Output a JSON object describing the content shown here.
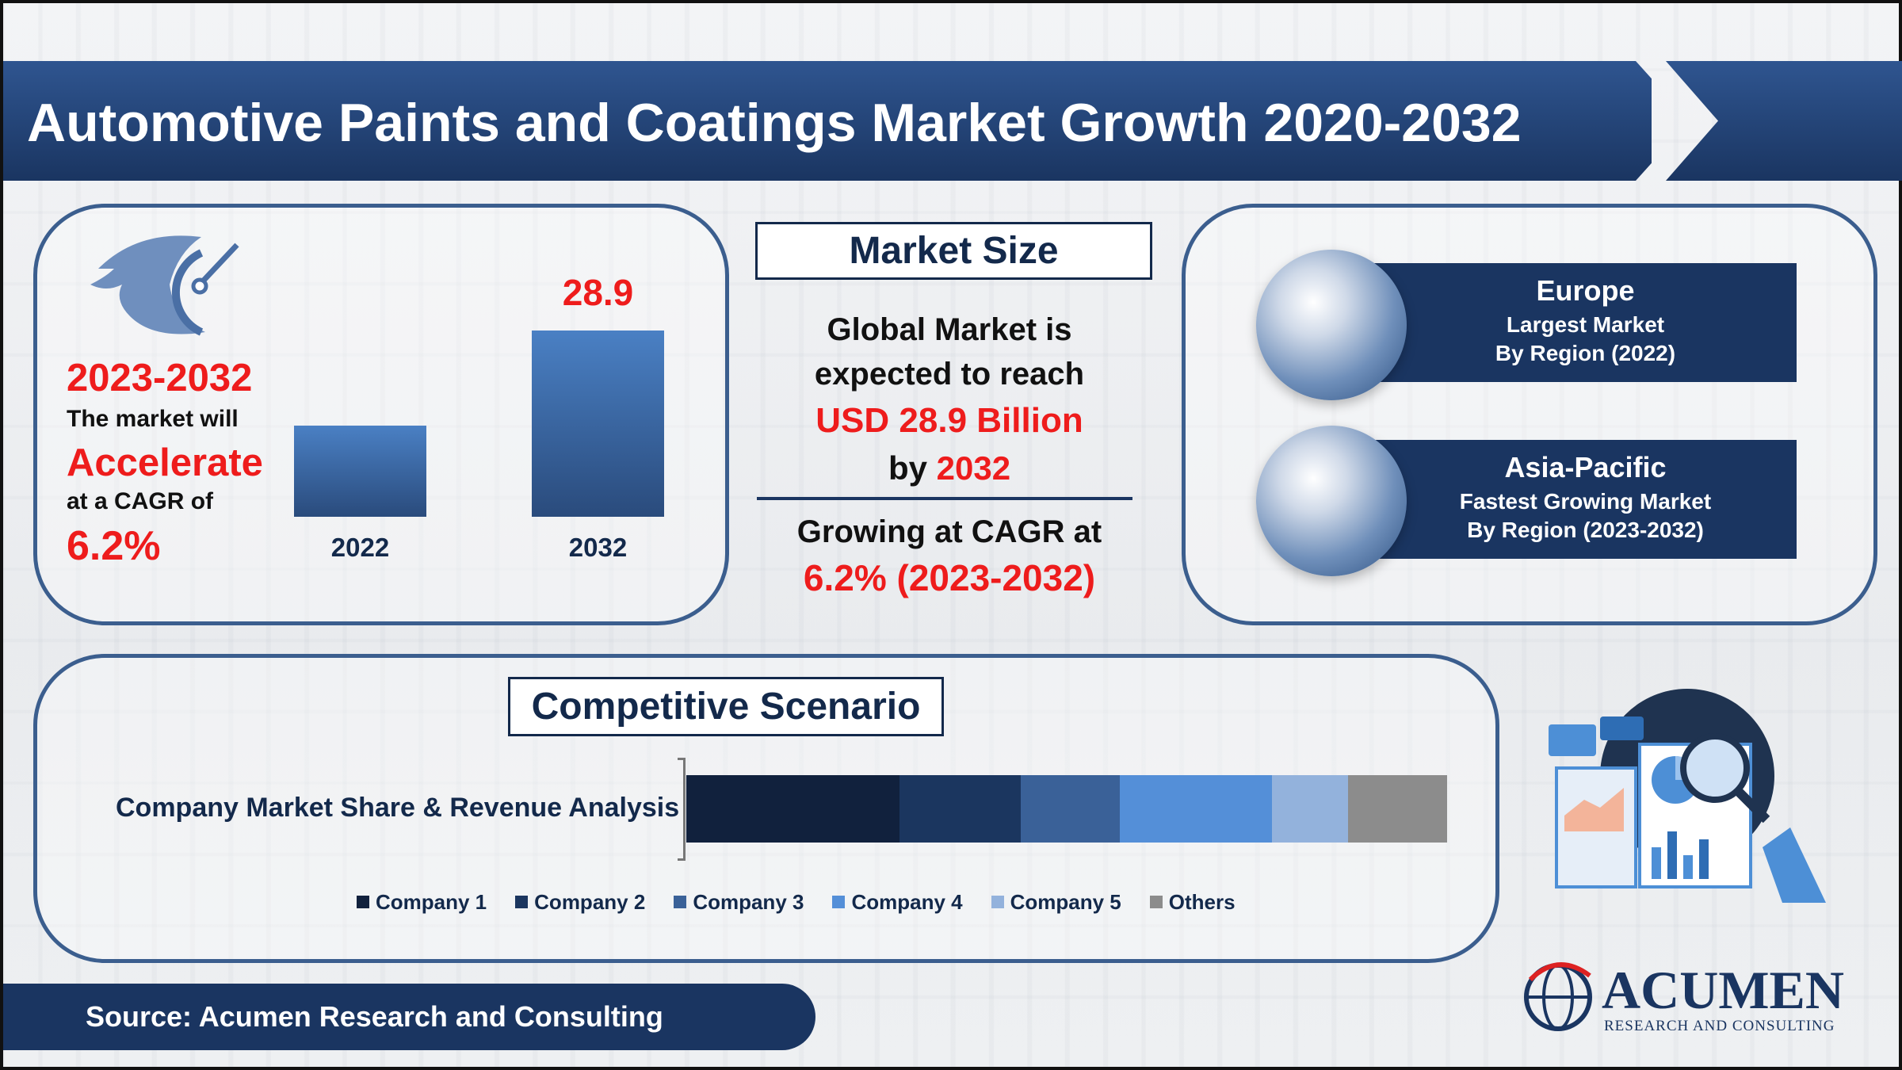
{
  "header": {
    "title": "Automotive Paints and Coatings Market Growth 2020-2032"
  },
  "growth_panel": {
    "period": "2023-2032",
    "line1": "The market will",
    "highlight": "Accelerate",
    "line2": "at a CAGR of",
    "cagr": "6.2%"
  },
  "chart_data": {
    "type": "bar",
    "categories": [
      "2022",
      "2032"
    ],
    "values": [
      14.2,
      28.9
    ],
    "data_labels": [
      "",
      "28.9"
    ],
    "bar_color": "#3a68a8"
  },
  "market_size": {
    "title": "Market Size",
    "line1": "Global Market is",
    "line2": "expected to reach",
    "value": "USD 28.9 Billion",
    "line3_prefix": "by ",
    "line3_year": "2032",
    "cagr_label": "Growing at CAGR at",
    "cagr_value": "6.2% (2023-2032)"
  },
  "regions": [
    {
      "name": "Europe",
      "desc": "Largest Market",
      "sub": "By Region (2022)"
    },
    {
      "name": "Asia-Pacific",
      "desc": "Fastest Growing Market",
      "sub": "By Region (2023-2032)"
    }
  ],
  "competitive": {
    "title": "Competitive Scenario",
    "label": "Company Market Share & Revenue Analysis",
    "segments": [
      {
        "name": "Company 1",
        "share": 28,
        "color": "#11213d"
      },
      {
        "name": "Company 2",
        "share": 16,
        "color": "#1b365f"
      },
      {
        "name": "Company 3",
        "share": 13,
        "color": "#3a6198"
      },
      {
        "name": "Company 4",
        "share": 20,
        "color": "#548fd8"
      },
      {
        "name": "Company 5",
        "share": 10,
        "color": "#93b2dc"
      },
      {
        "name": "Others",
        "share": 13,
        "color": "#8c8c8c"
      }
    ]
  },
  "footer": {
    "source": "Source: Acumen Research and Consulting"
  },
  "logo": {
    "name": "ACUMEN",
    "tagline": "RESEARCH AND CONSULTING"
  },
  "colors": {
    "accent": "#ee1c1c",
    "navy": "#1a3561",
    "border": "#3b5e8e"
  }
}
